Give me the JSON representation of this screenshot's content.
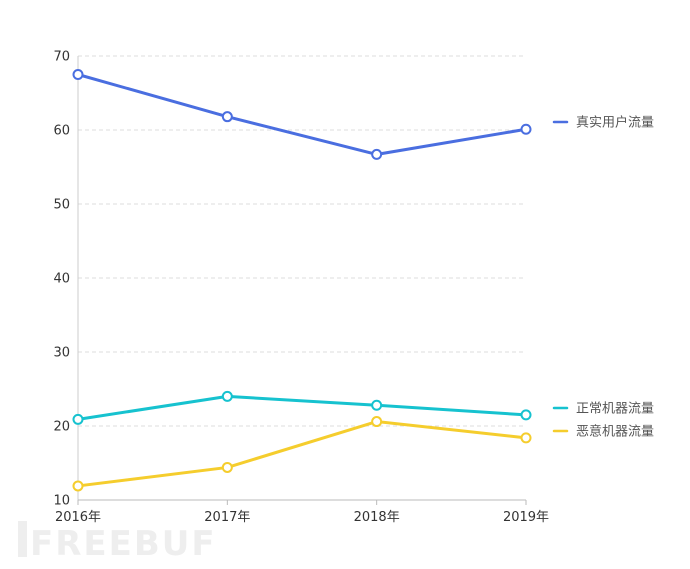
{
  "watermark": "FREEBUF",
  "chart_data": {
    "type": "line",
    "title": "",
    "xlabel": "",
    "ylabel": "",
    "categories": [
      "2016年",
      "2017年",
      "2018年",
      "2019年"
    ],
    "ylim": [
      10,
      70
    ],
    "yticks": [
      10,
      20,
      30,
      40,
      50,
      60,
      70
    ],
    "grid": true,
    "legend_position": "right",
    "series": [
      {
        "name": "真实用户流量",
        "values": [
          67.5,
          61.8,
          56.7,
          60.1
        ],
        "color": "#4a6ee0"
      },
      {
        "name": "正常机器流量",
        "values": [
          20.9,
          24.0,
          22.8,
          21.5
        ],
        "color": "#16c2cf"
      },
      {
        "name": "恶意机器流量",
        "values": [
          11.9,
          14.4,
          20.6,
          18.4
        ],
        "color": "#f5cd2d"
      }
    ]
  }
}
